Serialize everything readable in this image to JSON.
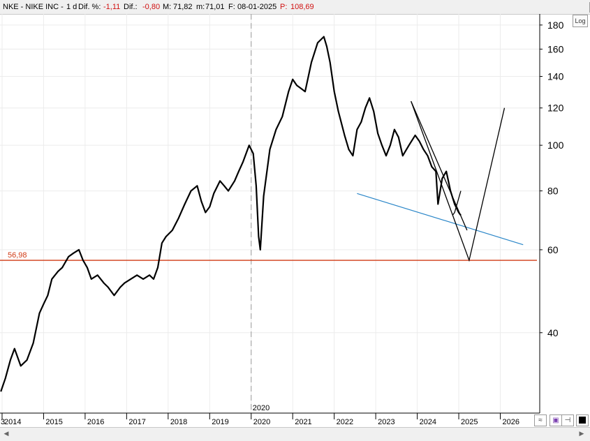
{
  "infobar": {
    "symbol": "NKE - NIKE INC -",
    "period": "1 d",
    "dif_pct_label": "Dif. %:",
    "dif_pct_value": "-1,11",
    "dif_label": "Dif.:",
    "dif_value": "-0,80",
    "max_label": "M:",
    "max_value": "71,82",
    "min_label": "m:",
    "min_value": "71,01",
    "date_label": "F:",
    "date_value": "08-01-2025",
    "p_label": "P:",
    "p_value": "108,69"
  },
  "window_buttons": [
    "_",
    "□",
    "×"
  ],
  "log_toggle": "Log",
  "colors": {
    "price": "#000000",
    "support_line": "#d03a14",
    "trend_line": "#2a86c8",
    "drawing": "#000000",
    "infobar_bg": "#f0f0f0"
  },
  "chart_data": {
    "type": "line",
    "title": "NKE - NIKE INC -",
    "yscale": "log",
    "ylim": [
      27,
      190
    ],
    "xlim": [
      2013.95,
      2026.95
    ],
    "yticks": [
      40,
      60,
      80,
      100,
      120,
      140,
      160,
      180
    ],
    "xticks": [
      "2014",
      "2015",
      "2016",
      "2017",
      "2018",
      "2019",
      "2020",
      "2021",
      "2022",
      "2023",
      "2024",
      "2025",
      "2026"
    ],
    "partial_left_tick": "3",
    "covid_marker_label": "2020",
    "support_level": {
      "value": 56.98,
      "label": "56,98"
    },
    "price_series": {
      "x": [
        2013.97,
        2014.08,
        2014.2,
        2014.3,
        2014.45,
        2014.6,
        2014.75,
        2014.9,
        2015.0,
        2015.1,
        2015.2,
        2015.35,
        2015.45,
        2015.6,
        2015.72,
        2015.85,
        2015.95,
        2016.05,
        2016.15,
        2016.3,
        2016.45,
        2016.55,
        2016.7,
        2016.85,
        2016.95,
        2017.1,
        2017.25,
        2017.4,
        2017.55,
        2017.65,
        2017.75,
        2017.85,
        2017.95,
        2018.1,
        2018.25,
        2018.4,
        2018.55,
        2018.7,
        2018.8,
        2018.9,
        2019.0,
        2019.1,
        2019.25,
        2019.35,
        2019.45,
        2019.6,
        2019.7,
        2019.8,
        2019.95,
        2020.05,
        2020.12,
        2020.18,
        2020.22,
        2020.3,
        2020.45,
        2020.6,
        2020.75,
        2020.9,
        2021.0,
        2021.1,
        2021.2,
        2021.3,
        2021.45,
        2021.6,
        2021.75,
        2021.82,
        2021.9,
        2022.0,
        2022.1,
        2022.25,
        2022.35,
        2022.45,
        2022.55,
        2022.65,
        2022.75,
        2022.85,
        2022.95,
        2023.05,
        2023.15,
        2023.25,
        2023.35,
        2023.45,
        2023.55,
        2023.65,
        2023.8,
        2023.95,
        2024.05,
        2024.15,
        2024.25,
        2024.35,
        2024.45,
        2024.5,
        2024.6,
        2024.7,
        2024.8,
        2024.9,
        2025.0,
        2025.05
      ],
      "y": [
        30,
        32,
        35,
        37,
        34,
        35,
        38,
        44,
        46,
        48,
        52,
        54,
        55,
        58,
        59,
        60,
        57,
        55,
        52,
        53,
        51,
        50,
        48,
        50,
        51,
        52,
        53,
        52,
        53,
        52,
        55,
        62,
        64,
        66,
        70,
        75,
        80,
        82,
        76,
        72,
        74,
        79,
        84,
        82,
        80,
        84,
        88,
        92,
        100,
        96,
        82,
        64,
        60,
        78,
        98,
        108,
        115,
        130,
        138,
        134,
        132,
        130,
        150,
        165,
        170,
        162,
        150,
        130,
        118,
        105,
        98,
        95,
        108,
        112,
        120,
        126,
        118,
        106,
        100,
        95,
        100,
        108,
        104,
        95,
        100,
        105,
        102,
        98,
        95,
        90,
        88,
        75,
        85,
        88,
        80,
        75,
        72,
        71
      ]
    },
    "drawing_lines": [
      {
        "name": "downtrend-line",
        "x": [
          2023.85,
          2025.2
        ],
        "y": [
          124,
          66
        ]
      },
      {
        "name": "projection-line",
        "x": [
          2023.85,
          2025.25,
          2026.1
        ],
        "y": [
          124,
          57,
          120
        ]
      },
      {
        "name": "short-arrow",
        "x": [
          2024.85,
          2024.9,
          2025.05
        ],
        "y": [
          71,
          72,
          80
        ]
      }
    ],
    "trend_line": {
      "name": "blue-support-line",
      "x": [
        2022.55,
        2026.55
      ],
      "y": [
        79,
        61.5
      ]
    }
  }
}
